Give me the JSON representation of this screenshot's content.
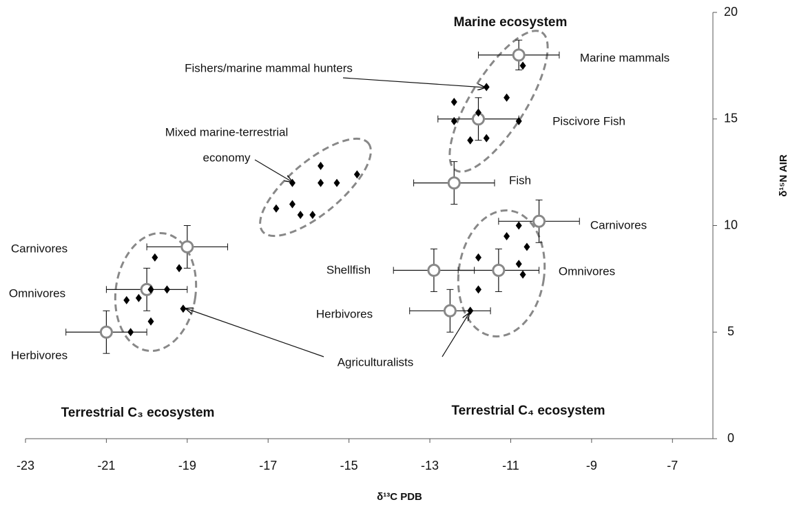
{
  "chart_data": {
    "type": "scatter",
    "xlabel": "δ¹³C PDB",
    "ylabel": "δ¹⁵N AIR",
    "xlim": [
      -23,
      -6
    ],
    "ylim": [
      0,
      20
    ],
    "xticks": [
      -23,
      -21,
      -19,
      -17,
      -15,
      -13,
      -11,
      -9,
      -7
    ],
    "yticks": [
      0,
      5,
      10,
      15,
      20
    ],
    "series": [
      {
        "color": "#000000",
        "x": [
          -19.8,
          -19.2,
          -19.5,
          -19.9,
          -20.2,
          -20.5,
          -19.9,
          -19.1,
          -20.4
        ],
        "values": [
          8.5,
          8.0,
          7.0,
          7.0,
          6.6,
          6.5,
          5.5,
          6.1,
          5.0
        ]
      },
      {
        "color": "#000000",
        "x": [
          -16.8,
          -16.4,
          -16.4,
          -16.2,
          -15.9,
          -15.7,
          -15.7,
          -15.3,
          -14.8
        ],
        "values": [
          10.8,
          11.0,
          12.0,
          10.5,
          10.5,
          12.8,
          12.0,
          12.0,
          12.4
        ]
      },
      {
        "color": "#000000",
        "x": [
          -12.4,
          -12.4,
          -11.8,
          -11.6,
          -12.0,
          -11.6,
          -11.1,
          -10.8,
          -10.7
        ],
        "values": [
          15.8,
          14.9,
          15.3,
          16.5,
          14.0,
          14.1,
          16.0,
          14.9,
          17.5
        ]
      },
      {
        "color": "#000000",
        "x": [
          -11.8,
          -11.8,
          -12.0,
          -11.1,
          -10.8,
          -10.6,
          -10.8,
          -10.7
        ],
        "values": [
          8.5,
          7.0,
          6.0,
          9.5,
          10.0,
          9.0,
          8.2,
          7.7
        ]
      }
    ],
    "references": [
      {
        "label": "Carnivores",
        "x": -19,
        "y": 9,
        "xerr": 1,
        "yerr": 1
      },
      {
        "label": "Omnivores",
        "x": -20,
        "y": 7,
        "xerr": 1,
        "yerr": 1
      },
      {
        "label": "Herbivores",
        "x": -21,
        "y": 5,
        "xerr": 1,
        "yerr": 1
      },
      {
        "label": "Marine mammals",
        "x": -10.8,
        "y": 18,
        "xerr": 1,
        "yerr": 0.7
      },
      {
        "label": "Piscivore Fish",
        "x": -11.8,
        "y": 15,
        "xerr": 1,
        "yerr": 1
      },
      {
        "label": "Fish",
        "x": -12.4,
        "y": 12,
        "xerr": 1,
        "yerr": 1
      },
      {
        "label": "Carnivores",
        "x": -10.3,
        "y": 10.2,
        "xerr": 1,
        "yerr": 1
      },
      {
        "label": "Shellfish",
        "x": -12.9,
        "y": 7.9,
        "xerr": 1,
        "yerr": 1
      },
      {
        "label": "Omnivores",
        "x": -11.3,
        "y": 7.9,
        "xerr": 1,
        "yerr": 1
      },
      {
        "label": "Herbivores",
        "x": -12.5,
        "y": 6,
        "xerr": 1,
        "yerr": 1
      }
    ],
    "annotations": {
      "marine": "Marine ecosystem",
      "fishers": "Fishers/marine mammal hunters",
      "mixed": [
        "Mixed marine-terrestrial",
        "economy"
      ],
      "agri": "Agriculturalists",
      "c3": "Terrestrial C₃ ecosystem",
      "c4": "Terrestrial C₄ ecosystem"
    }
  }
}
